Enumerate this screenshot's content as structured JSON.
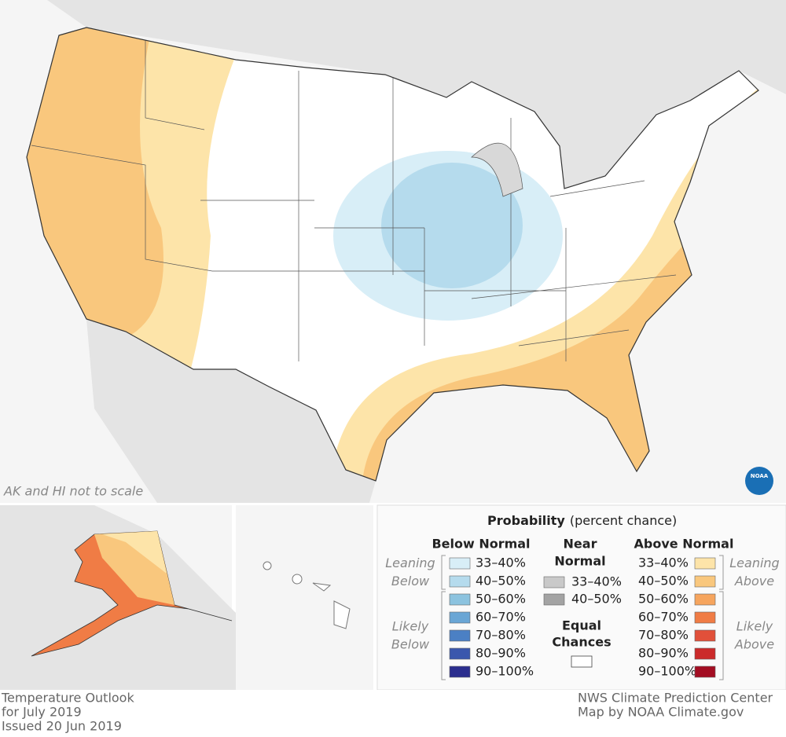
{
  "map": {
    "scale_note": "AK and HI not to scale",
    "logo": "NOAA"
  },
  "legend": {
    "title": "Probability",
    "subtitle": "(percent chance)",
    "below": {
      "heading": "Below Normal",
      "groups": [
        {
          "lines": [
            "Leaning",
            "Below"
          ],
          "items": [
            {
              "label": "33–40%",
              "color": "#d8eef7"
            },
            {
              "label": "40–50%",
              "color": "#b5dbed"
            }
          ]
        },
        {
          "lines": [
            "Likely",
            "Below"
          ],
          "items": [
            {
              "label": "50–60%",
              "color": "#8cc3df"
            },
            {
              "label": "60–70%",
              "color": "#6aa6d5"
            },
            {
              "label": "70–80%",
              "color": "#4b80c4"
            },
            {
              "label": "80–90%",
              "color": "#3a57ad"
            },
            {
              "label": "90–100%",
              "color": "#2b2e8e"
            }
          ]
        }
      ]
    },
    "near": {
      "heading": [
        "Near",
        "Normal"
      ],
      "items": [
        {
          "label": "33–40%",
          "color": "#c9c9c9"
        },
        {
          "label": "40–50%",
          "color": "#a3a3a3"
        }
      ]
    },
    "equal": {
      "heading": [
        "Equal",
        "Chances"
      ],
      "color": "#ffffff"
    },
    "above": {
      "heading": "Above Normal",
      "groups": [
        {
          "lines": [
            "Leaning",
            "Above"
          ],
          "items": [
            {
              "label": "33–40%",
              "color": "#fde4a9"
            },
            {
              "label": "40–50%",
              "color": "#f9c77d"
            }
          ]
        },
        {
          "lines": [
            "Likely",
            "Above"
          ],
          "items": [
            {
              "label": "50–60%",
              "color": "#f6a55e"
            },
            {
              "label": "60–70%",
              "color": "#f07c45"
            },
            {
              "label": "70–80%",
              "color": "#e1503a"
            },
            {
              "label": "80–90%",
              "color": "#cb2a2a"
            },
            {
              "label": "90–100%",
              "color": "#a30d22"
            }
          ]
        }
      ]
    }
  },
  "footer": {
    "left": [
      "Temperature Outlook",
      "for July 2019",
      "Issued 20 Jun 2019"
    ],
    "right": [
      "NWS Climate Prediction Center",
      "Map by NOAA Climate.gov"
    ]
  }
}
